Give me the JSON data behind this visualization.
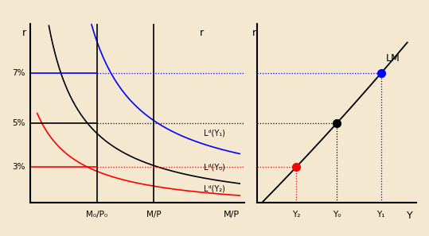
{
  "bg_color": "#f5e8d0",
  "left_panel": {
    "xlim": [
      0,
      9
    ],
    "ylim": [
      0,
      9
    ],
    "m0p0_x": 2.8,
    "mp_x": 5.2,
    "r3": 1.8,
    "r5": 4.0,
    "r7": 6.5,
    "labels": {
      "r_axis": "r",
      "mp_axis": "M/P",
      "m0p0": "M₀/P₀",
      "mp": "M/P",
      "Ld_Y1": "Lᵈ(Y₁)",
      "Ld_Y0": "Lᵈ(Y₀)",
      "Ld_Y2": "Lᵈ(Y₂)",
      "pct7": "7%",
      "pct5": "5%",
      "pct3": "3%"
    }
  },
  "right_panel": {
    "xlim": [
      0,
      9
    ],
    "ylim": [
      0,
      9
    ],
    "Y2_x": 2.2,
    "Y0_x": 4.5,
    "Y1_x": 7.0,
    "labels": {
      "r_axis": "r",
      "y_axis": "Y",
      "LM": "LM",
      "Y2": "Y₂",
      "Y0": "Y₀",
      "Y1": "Y₁"
    }
  }
}
